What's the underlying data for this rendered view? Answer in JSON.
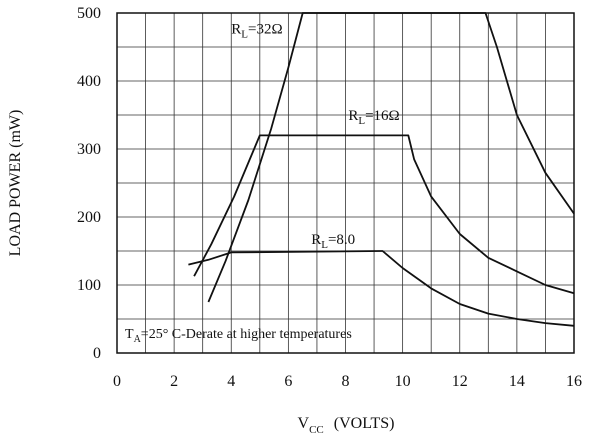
{
  "chart_data": {
    "type": "line",
    "xlabel": "V",
    "xlabel_sub": "CC",
    "xlabel_unit": "(VOLTS)",
    "ylabel": "LOAD POWER  (mW)",
    "xlim": [
      0,
      16
    ],
    "ylim": [
      0,
      500
    ],
    "grid": true,
    "x_ticks": [
      0,
      2,
      4,
      6,
      8,
      10,
      12,
      14,
      16
    ],
    "y_ticks": [
      0,
      100,
      200,
      300,
      400,
      500
    ],
    "annotation": {
      "main": "T",
      "sub": "A",
      "rest": "=25° C-Derate at higher temperatures"
    },
    "series": [
      {
        "label_main": "R",
        "label_sub": "L",
        "label_rest": "=32Ω",
        "label_at": [
          4.0,
          470
        ],
        "color": "#111111",
        "points": [
          [
            3.2,
            75
          ],
          [
            3.8,
            135
          ],
          [
            4.6,
            225
          ],
          [
            5.4,
            330
          ],
          [
            6.0,
            420
          ],
          [
            6.5,
            500
          ],
          [
            12.9,
            500
          ],
          [
            13.3,
            450
          ],
          [
            14.0,
            350
          ],
          [
            15.0,
            265
          ],
          [
            16.0,
            205
          ]
        ]
      },
      {
        "label_main": "R",
        "label_sub": "L",
        "label_rest": "=16Ω",
        "label_at": [
          8.1,
          343
        ],
        "color": "#111111",
        "points": [
          [
            2.7,
            113
          ],
          [
            3.3,
            160
          ],
          [
            4.1,
            230
          ],
          [
            4.8,
            300
          ],
          [
            5.0,
            320
          ],
          [
            10.2,
            320
          ],
          [
            10.4,
            285
          ],
          [
            11.0,
            230
          ],
          [
            12.0,
            175
          ],
          [
            13.0,
            140
          ],
          [
            14.0,
            120
          ],
          [
            15.0,
            100
          ],
          [
            16.0,
            88
          ]
        ]
      },
      {
        "label_main": "R",
        "label_sub": "L",
        "label_rest": "=8.0",
        "label_at": [
          6.8,
          160
        ],
        "color": "#111111",
        "points": [
          [
            2.5,
            130
          ],
          [
            3.2,
            137
          ],
          [
            4.0,
            148
          ],
          [
            9.3,
            150
          ],
          [
            10.0,
            125
          ],
          [
            11.0,
            95
          ],
          [
            12.0,
            72
          ],
          [
            13.0,
            58
          ],
          [
            14.0,
            50
          ],
          [
            15.0,
            44
          ],
          [
            16.0,
            40
          ]
        ]
      }
    ]
  }
}
